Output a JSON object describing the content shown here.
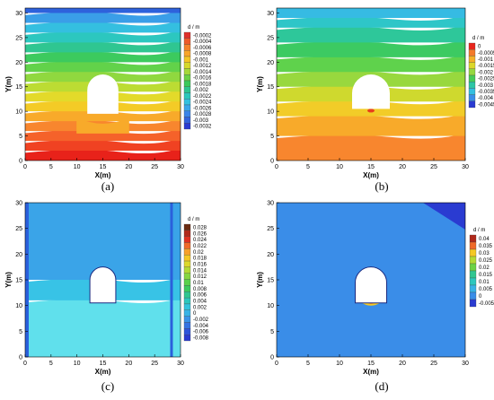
{
  "chart_data": [
    {
      "type": "contour",
      "caption": "(a)",
      "xlabel": "X(m)",
      "ylabel": "Y(m)",
      "xlim": [
        0,
        30
      ],
      "ylim": [
        0,
        31
      ],
      "xticks": [
        "0",
        "5",
        "10",
        "15",
        "20",
        "25",
        "30"
      ],
      "yticks": [
        "0",
        "5",
        "10",
        "15",
        "20",
        "25",
        "30"
      ],
      "legend_title": "d / m",
      "legend_levels": [
        "-0.0002",
        "-0.0004",
        "-0.0006",
        "-0.0008",
        "-0.001",
        "-0.0012",
        "-0.0014",
        "-0.0016",
        "-0.0018",
        "-0.002",
        "-0.0022",
        "-0.0024",
        "-0.0026",
        "-0.0028",
        "-0.003",
        "-0.0032"
      ],
      "legend_colors": [
        "#e0302a",
        "#ee5a2a",
        "#f5822b",
        "#f8a529",
        "#f4c624",
        "#d6d92c",
        "#a6d83a",
        "#6cd245",
        "#3cc95a",
        "#2ec58f",
        "#2cc7bb",
        "#33c1e0",
        "#3aa6ea",
        "#3b84e8",
        "#3263dc",
        "#2a3bd1"
      ],
      "bands": [
        {
          "y_bottom": 0,
          "color": "#e8221a"
        },
        {
          "y_bottom": 2,
          "color": "#f04222"
        },
        {
          "y_bottom": 4,
          "color": "#f5622a"
        },
        {
          "y_bottom": 6,
          "color": "#f8862e"
        },
        {
          "y_bottom": 8,
          "color": "#f8aa2a"
        },
        {
          "y_bottom": 10,
          "color": "#f4cb26"
        },
        {
          "y_bottom": 12,
          "color": "#e3da2a"
        },
        {
          "y_bottom": 14,
          "color": "#bcdc33"
        },
        {
          "y_bottom": 16,
          "color": "#90d83f"
        },
        {
          "y_bottom": 18,
          "color": "#62d24a"
        },
        {
          "y_bottom": 20,
          "color": "#3cca5e"
        },
        {
          "y_bottom": 22,
          "color": "#2fc691"
        },
        {
          "y_bottom": 24,
          "color": "#2cc7bf"
        },
        {
          "y_bottom": 26,
          "color": "#34bfe0"
        },
        {
          "y_bottom": 28,
          "color": "#3a9ee8"
        },
        {
          "y_bottom": 30,
          "color": "#2e62dc"
        }
      ],
      "tunnel": {
        "x_center": 15,
        "y_bottom": 9.5,
        "y_top": 17.5,
        "half_width": 3
      }
    },
    {
      "type": "contour",
      "caption": "(b)",
      "xlabel": "X(m)",
      "ylabel": "Y(m)",
      "xlim": [
        0,
        30
      ],
      "ylim": [
        0,
        31
      ],
      "xticks": [
        "0",
        "5",
        "10",
        "15",
        "20",
        "25",
        "30"
      ],
      "yticks": [
        "0",
        "5",
        "10",
        "15",
        "20",
        "25",
        "30"
      ],
      "legend_title": "d / m",
      "legend_levels": [
        "0",
        "-0.0005",
        "-0.001",
        "-0.0015",
        "-0.002",
        "-0.0025",
        "-0.003",
        "-0.0035",
        "-0.004",
        "-0.0045"
      ],
      "legend_colors": [
        "#e8251c",
        "#f47a2a",
        "#f5b028",
        "#dcd82b",
        "#95d83f",
        "#46cb57",
        "#2dc6a5",
        "#33bfe0",
        "#3a8ee8",
        "#2a3bd1"
      ],
      "bands": [
        {
          "y_bottom": 0,
          "color": "#f8862e"
        },
        {
          "y_bottom": 5,
          "color": "#f8aa2a"
        },
        {
          "y_bottom": 9,
          "color": "#f2cc28"
        },
        {
          "y_bottom": 12,
          "color": "#cfd92e"
        },
        {
          "y_bottom": 15,
          "color": "#98d83e"
        },
        {
          "y_bottom": 18,
          "color": "#5fd24c"
        },
        {
          "y_bottom": 21,
          "color": "#3cca62"
        },
        {
          "y_bottom": 24,
          "color": "#2ec79a"
        },
        {
          "y_bottom": 27,
          "color": "#2ec6c8"
        },
        {
          "y_bottom": 29,
          "color": "#36bbe3"
        }
      ],
      "tunnel": {
        "x_center": 15,
        "y_bottom": 10.5,
        "y_top": 17.5,
        "half_width": 3
      }
    },
    {
      "type": "contour",
      "caption": "(c)",
      "xlabel": "X(m)",
      "ylabel": "Y(m)",
      "xlim": [
        0,
        30
      ],
      "ylim": [
        0,
        30
      ],
      "xticks": [
        "0",
        "5",
        "10",
        "15",
        "20",
        "25",
        "30"
      ],
      "yticks": [
        "0",
        "5",
        "10",
        "15",
        "20",
        "25",
        "30"
      ],
      "legend_title": "d / m",
      "legend_levels": [
        "0.028",
        "0.026",
        "0.024",
        "0.022",
        "0.02",
        "0.018",
        "0.016",
        "0.014",
        "0.012",
        "0.01",
        "0.008",
        "0.006",
        "0.004",
        "0.002",
        "0",
        "-0.002",
        "-0.004",
        "-0.006",
        "-0.008"
      ],
      "legend_colors": [
        "#6a2a10",
        "#b0281a",
        "#e03020",
        "#f06a28",
        "#f7a02a",
        "#f4c824",
        "#dcd82b",
        "#b4da34",
        "#86d640",
        "#5ad14c",
        "#3cca5e",
        "#2fc690",
        "#2cc7bd",
        "#33c3dc",
        "#38b3e6",
        "#3a93e8",
        "#3573e2",
        "#2e54da",
        "#2a3bd1"
      ],
      "bands": [
        {
          "y_bottom": 0,
          "color": "#60e0ec"
        },
        {
          "y_bottom": 11,
          "color": "#38c3e6"
        },
        {
          "y_bottom": 15,
          "color": "#3aa4e8"
        }
      ],
      "tunnel": {
        "x_center": 15,
        "y_bottom": 10.5,
        "y_top": 17.5,
        "half_width": 2.5
      }
    },
    {
      "type": "contour",
      "caption": "(d)",
      "xlabel": "X(m)",
      "ylabel": "Y(m)",
      "xlim": [
        0,
        30
      ],
      "ylim": [
        0,
        30
      ],
      "xticks": [
        "0",
        "5",
        "10",
        "15",
        "20",
        "25",
        "30"
      ],
      "yticks": [
        "0",
        "5",
        "10",
        "15",
        "20",
        "25",
        "30"
      ],
      "legend_title": "d / m",
      "legend_levels": [
        "0.04",
        "0.035",
        "0.03",
        "0.025",
        "0.02",
        "0.015",
        "0.01",
        "0.005",
        "0",
        "-0.005"
      ],
      "legend_colors": [
        "#b0281a",
        "#f06a28",
        "#f4c824",
        "#b4da34",
        "#6cd245",
        "#2fc690",
        "#2cc7bd",
        "#38b3e6",
        "#3a8ee8",
        "#2a3bd1"
      ],
      "bands": [
        {
          "y_bottom": 0,
          "color": "#3a8de8"
        }
      ],
      "tunnel": {
        "x_center": 15,
        "y_bottom": 10.5,
        "y_top": 17.5,
        "half_width": 2.5
      }
    }
  ]
}
